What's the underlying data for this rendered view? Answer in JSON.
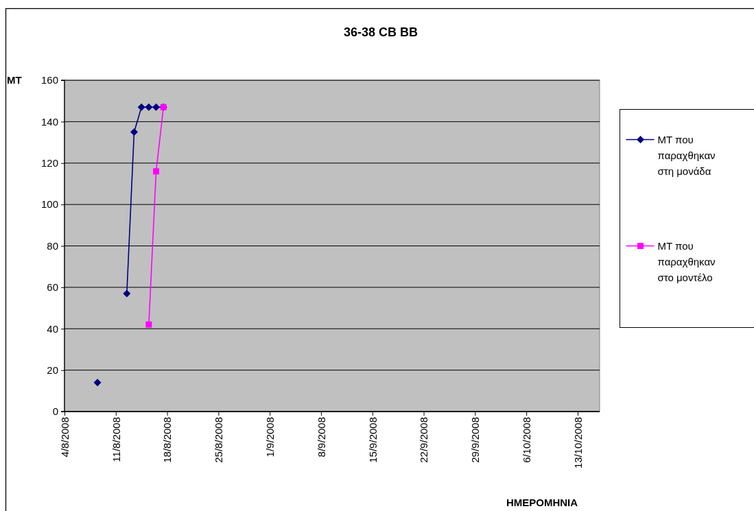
{
  "chart_data": {
    "type": "line",
    "title": "36-38 CB BB",
    "ylabel": "ΜΤ",
    "xlabel": "ΗΜΕΡΟΜΗΝΙΑ",
    "xlim": [
      "2008-08-04",
      "2008-10-16"
    ],
    "xticks": [
      {
        "value": "2008-08-04",
        "label": "4/8/2008"
      },
      {
        "value": "2008-08-11",
        "label": "11/8/2008"
      },
      {
        "value": "2008-08-18",
        "label": "18/8/2008"
      },
      {
        "value": "2008-08-25",
        "label": "25/8/2008"
      },
      {
        "value": "2008-09-01",
        "label": "1/9/2008"
      },
      {
        "value": "2008-09-08",
        "label": "8/9/2008"
      },
      {
        "value": "2008-09-15",
        "label": "15/9/2008"
      },
      {
        "value": "2008-09-22",
        "label": "22/9/2008"
      },
      {
        "value": "2008-09-29",
        "label": "29/9/2008"
      },
      {
        "value": "2008-10-06",
        "label": "6/10/2008"
      },
      {
        "value": "2008-10-13",
        "label": "13/10/2008"
      }
    ],
    "ylim": [
      0,
      160
    ],
    "yticks": [
      0,
      20,
      40,
      60,
      80,
      100,
      120,
      140,
      160
    ],
    "grid": "y",
    "legend": "right",
    "series": [
      {
        "name": "ΜΤ που παραχθηκαν στη μονάδα",
        "color": "#000080",
        "marker": "diamond",
        "x": [
          "2008-08-08T12:00",
          "2008-08-09T12:00",
          "2008-08-10T12:00",
          "2008-08-11T12:00",
          "2008-08-12T12:00",
          "2008-08-13T12:00",
          "2008-08-14T12:00",
          "2008-08-15T12:00",
          "2008-08-16T12:00",
          "2008-08-17T12:00"
        ],
        "values": [
          14,
          null,
          null,
          null,
          57,
          135,
          147,
          147,
          147,
          147
        ]
      },
      {
        "name": "ΜΤ που παραχθηκαν στο μοντέλο",
        "color": "#ff00ff",
        "marker": "square",
        "x": [
          "2008-08-15T12:00",
          "2008-08-16T12:00",
          "2008-08-17T12:00"
        ],
        "values": [
          42,
          116,
          147
        ]
      }
    ]
  }
}
